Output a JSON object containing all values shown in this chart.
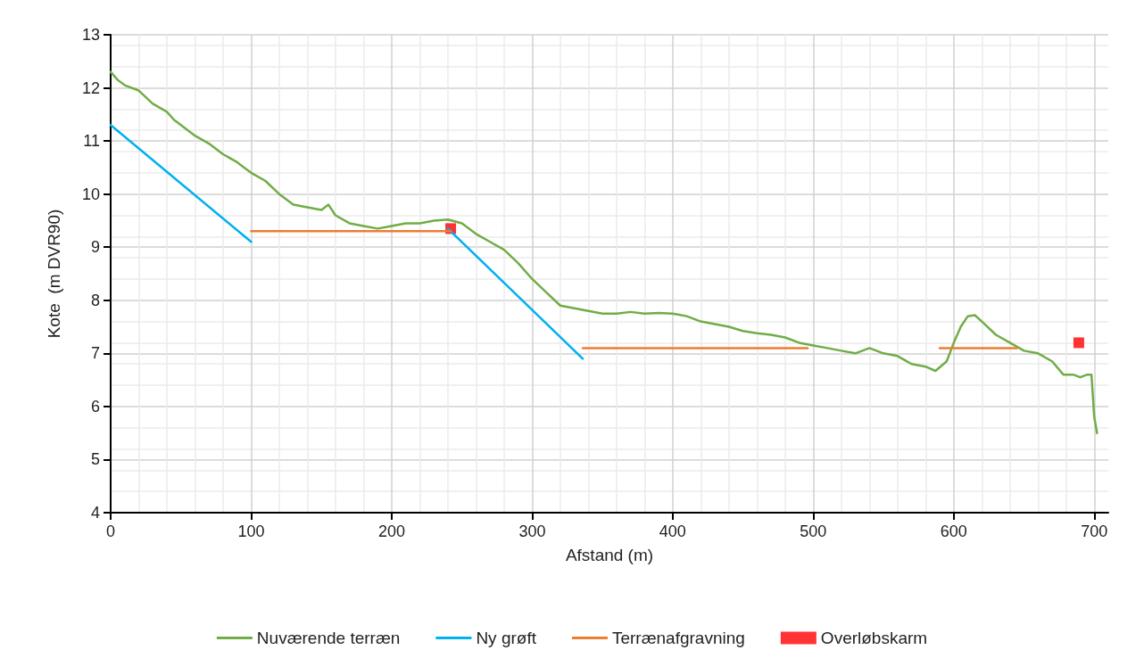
{
  "chart_data": {
    "type": "line",
    "xlabel": "Afstand (m)",
    "ylabel": "Kote  (m DVR90)",
    "xlim": [
      0,
      710
    ],
    "xticks": [
      0,
      100,
      200,
      300,
      400,
      500,
      600,
      700
    ],
    "ylim": [
      4,
      13
    ],
    "yticks": [
      4,
      5,
      6,
      7,
      8,
      9,
      10,
      11,
      12,
      13
    ],
    "grid": true,
    "legend": "bottom",
    "marker": "none",
    "line_style": "solid",
    "series": [
      {
        "name": "Nuværende terræn",
        "color": "#70ad47",
        "x": [
          0,
          5,
          10,
          20,
          30,
          40,
          45,
          50,
          60,
          70,
          80,
          90,
          95,
          100,
          110,
          120,
          130,
          140,
          150,
          155,
          160,
          170,
          180,
          190,
          200,
          210,
          220,
          230,
          240,
          250,
          260,
          270,
          280,
          290,
          300,
          310,
          320,
          330,
          340,
          350,
          360,
          370,
          380,
          390,
          400,
          410,
          420,
          430,
          440,
          450,
          460,
          470,
          480,
          490,
          500,
          510,
          520,
          530,
          540,
          550,
          560,
          570,
          580,
          587,
          595,
          600,
          605,
          610,
          615,
          620,
          630,
          640,
          650,
          660,
          670,
          678,
          685,
          690,
          695,
          698,
          700,
          702
        ],
        "values": [
          12.3,
          12.15,
          12.05,
          11.95,
          11.7,
          11.55,
          11.4,
          11.3,
          11.1,
          10.95,
          10.75,
          10.6,
          10.5,
          10.4,
          10.25,
          10.0,
          9.8,
          9.75,
          9.7,
          9.8,
          9.6,
          9.45,
          9.4,
          9.35,
          9.4,
          9.45,
          9.45,
          9.5,
          9.52,
          9.45,
          9.25,
          9.1,
          8.95,
          8.7,
          8.4,
          8.15,
          7.9,
          7.85,
          7.8,
          7.75,
          7.75,
          7.78,
          7.75,
          7.76,
          7.75,
          7.7,
          7.6,
          7.55,
          7.5,
          7.42,
          7.38,
          7.35,
          7.3,
          7.2,
          7.15,
          7.1,
          7.05,
          7.0,
          7.1,
          7.0,
          6.95,
          6.8,
          6.75,
          6.67,
          6.85,
          7.2,
          7.5,
          7.7,
          7.72,
          7.6,
          7.35,
          7.2,
          7.05,
          7.0,
          6.85,
          6.6,
          6.6,
          6.55,
          6.6,
          6.6,
          5.8,
          5.5
        ]
      },
      {
        "name": "Ny grøft",
        "color": "#00b0f0",
        "x": [
          0,
          100,
          170,
          240,
          336
        ],
        "values": [
          11.3,
          9.1,
          null,
          9.35,
          6.9
        ]
      },
      {
        "name": "Terrænafgravning",
        "color": "#ed7d31",
        "x": [
          100,
          242,
          290,
          336,
          496,
          540,
          590,
          645
        ],
        "values": [
          9.3,
          9.3,
          null,
          7.1,
          7.1,
          null,
          7.1,
          7.1
        ]
      },
      {
        "name": "Overløbskarm",
        "type": "scatter",
        "marker": "square",
        "color": "#ff0000",
        "x": [
          242,
          689
        ],
        "values": [
          9.35,
          7.2
        ]
      }
    ]
  }
}
